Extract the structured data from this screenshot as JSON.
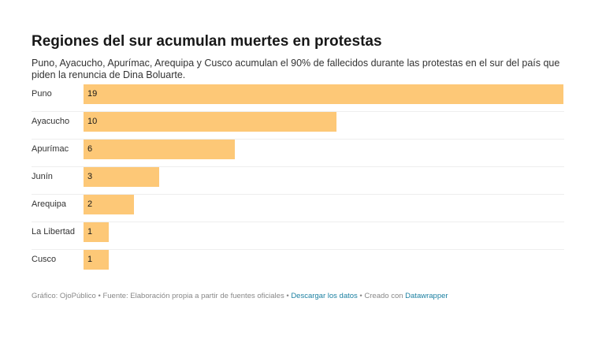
{
  "chart_data": {
    "type": "bar",
    "orientation": "horizontal",
    "title": "Regiones del sur acumulan muertes en protestas",
    "subtitle": "Puno, Ayacucho, Apurímac, Arequipa y Cusco acumulan el 90% de fallecidos durante las protestas en el sur del país que piden la renuncia de Dina Boluarte.",
    "categories": [
      "Puno",
      "Ayacucho",
      "Apurímac",
      "Junín",
      "Arequipa",
      "La Libertad",
      "Cusco"
    ],
    "values": [
      19,
      10,
      6,
      3,
      2,
      1,
      1
    ],
    "value_labels": [
      "19",
      "10",
      "6",
      "3",
      "2",
      "1",
      "1"
    ],
    "xlim": [
      0,
      19
    ],
    "bar_color": "#fdc877",
    "grid": false
  },
  "footer": {
    "credit": "Gráfico: OjoPúblico • Fuente: Elaboración propia a partir de fuentes oficiales • ",
    "download_link": "Descargar los datos",
    "created_text": " • Creado con ",
    "datawrapper_link": "Datawrapper",
    "link_color": "#1d81a2"
  }
}
